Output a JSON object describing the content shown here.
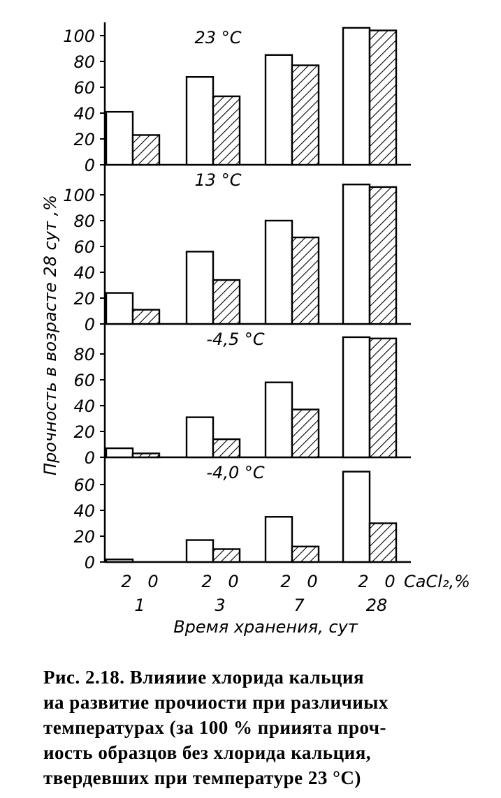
{
  "chart_data": {
    "type": "bar",
    "ylabel": "Прочность в возрасте 28 сут ,%",
    "xlabel": "Время хранения, сут",
    "legend_label": "CaCl₂,%",
    "categories": [
      "1",
      "3",
      "7",
      "28"
    ],
    "bar_labels": [
      "2",
      "0"
    ],
    "panels": [
      {
        "title": "23 °C",
        "ylim": [
          0,
          100
        ],
        "yticks": [
          0,
          20,
          40,
          60,
          80,
          100
        ],
        "series": [
          {
            "cacl2": "2",
            "fill": "plain",
            "values": [
              41,
              68,
              85,
              106
            ]
          },
          {
            "cacl2": "0",
            "fill": "hatched",
            "values": [
              23,
              53,
              77,
              104
            ]
          }
        ]
      },
      {
        "title": "13 °C",
        "ylim": [
          0,
          100
        ],
        "yticks": [
          0,
          20,
          40,
          60,
          80,
          100
        ],
        "series": [
          {
            "cacl2": "2",
            "fill": "plain",
            "values": [
              24,
              56,
              80,
              108
            ]
          },
          {
            "cacl2": "0",
            "fill": "hatched",
            "values": [
              11,
              34,
              67,
              106
            ]
          }
        ]
      },
      {
        "title": "-4,5 °C",
        "ylim": [
          0,
          90
        ],
        "yticks": [
          0,
          20,
          40,
          60,
          80
        ],
        "series": [
          {
            "cacl2": "2",
            "fill": "plain",
            "values": [
              7,
              31,
              58,
              93
            ]
          },
          {
            "cacl2": "0",
            "fill": "hatched",
            "values": [
              3,
              14,
              37,
              92
            ]
          }
        ]
      },
      {
        "title": "-4,0 °C",
        "ylim": [
          0,
          70
        ],
        "yticks": [
          0,
          20,
          40,
          60
        ],
        "series": [
          {
            "cacl2": "2",
            "fill": "plain",
            "values": [
              2,
              17,
              35,
              70
            ]
          },
          {
            "cacl2": "0",
            "fill": "hatched",
            "values": [
              0,
              10,
              12,
              30
            ]
          }
        ]
      }
    ]
  },
  "caption": {
    "label": "Рис. 2.18.",
    "line1": "Влияиие хлорида кальция",
    "line2": "иа развитие прочиости при различиых",
    "line3": "температурах (за 100 % приията проч-",
    "line4": "иость образцов без хлорида кальция,",
    "line5": "твердевших при температуре 23 °С)"
  }
}
